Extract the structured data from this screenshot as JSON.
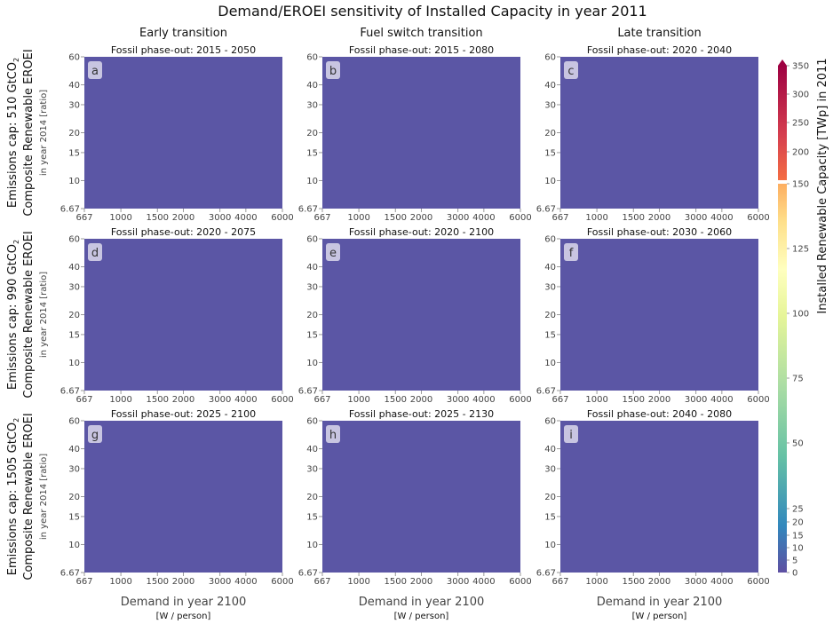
{
  "chart_data": {
    "type": "heatmap",
    "title": "Demand/EROEI sensitivity of Installed Capacity in year 2011",
    "column_titles": [
      "Early transition",
      "Fuel switch transition",
      "Late transition"
    ],
    "row_labels": [
      {
        "line1": "Emissions cap: 510 GtCO",
        "line1_sub": "2",
        "line2": "Composite Renewable EROEI",
        "line3": "in year 2014 [ratio]"
      },
      {
        "line1": "Emissions cap: 990 GtCO",
        "line1_sub": "2",
        "line2": "Composite Renewable EROEI",
        "line3": "in year 2014 [ratio]"
      },
      {
        "line1": "Emissions cap: 1505 GtCO",
        "line1_sub": "2",
        "line2": "Composite Renewable EROEI",
        "line3": "in year 2014 [ratio]"
      }
    ],
    "xlabel": "Demand in year 2100",
    "xlabel_unit": "[W / person]",
    "xscale": "log",
    "yscale": "log",
    "xlim": [
      667,
      6000
    ],
    "ylim": [
      6.67,
      60
    ],
    "x_ticks": [
      "667",
      "1000",
      "1500",
      "2000",
      "3000",
      "4000",
      "6000"
    ],
    "x_tick_values": [
      667,
      1000,
      1500,
      2000,
      3000,
      4000,
      6000
    ],
    "y_ticks": [
      "6.67",
      "10",
      "15",
      "20",
      "30",
      "40",
      "60"
    ],
    "y_tick_values": [
      6.67,
      10,
      15,
      20,
      30,
      40,
      60
    ],
    "panels": [
      {
        "letter": "a",
        "subtitle": "Fossil phase-out: 2015 - 2050",
        "value": 0
      },
      {
        "letter": "b",
        "subtitle": "Fossil phase-out: 2015 - 2080",
        "value": 0
      },
      {
        "letter": "c",
        "subtitle": "Fossil phase-out: 2020 - 2040",
        "value": 0
      },
      {
        "letter": "d",
        "subtitle": "Fossil phase-out: 2020 - 2075",
        "value": 0
      },
      {
        "letter": "e",
        "subtitle": "Fossil phase-out: 2020 - 2100",
        "value": 0
      },
      {
        "letter": "f",
        "subtitle": "Fossil phase-out: 2030 - 2060",
        "value": 0
      },
      {
        "letter": "g",
        "subtitle": "Fossil phase-out: 2025 - 2100",
        "value": 0
      },
      {
        "letter": "h",
        "subtitle": "Fossil phase-out: 2025 - 2130",
        "value": 0
      },
      {
        "letter": "i",
        "subtitle": "Fossil phase-out: 2040 - 2080",
        "value": 0
      }
    ],
    "colorbar": {
      "label": "Installed Renewable Capacity [TWp] in 2011",
      "ticks": [
        "0",
        "5",
        "10",
        "15",
        "20",
        "25",
        "50",
        "75",
        "100",
        "125",
        "150",
        "200",
        "250",
        "300",
        "350"
      ],
      "tick_values": [
        0,
        5,
        10,
        15,
        20,
        25,
        50,
        75,
        100,
        125,
        150,
        200,
        250,
        300,
        350
      ],
      "colors": {
        "low": "#5e4fa2",
        "mid_low": "#3288bd",
        "teal": "#66c2a5",
        "green": "#abdda4",
        "yellow_green": "#e6f598",
        "pale": "#ffffbf",
        "pale_orange": "#fee08b",
        "orange": "#fdae61",
        "red_orange": "#f46d43",
        "red": "#d53e4f",
        "high": "#9e0142"
      }
    },
    "panel_fill_color": "#5b56a5"
  }
}
